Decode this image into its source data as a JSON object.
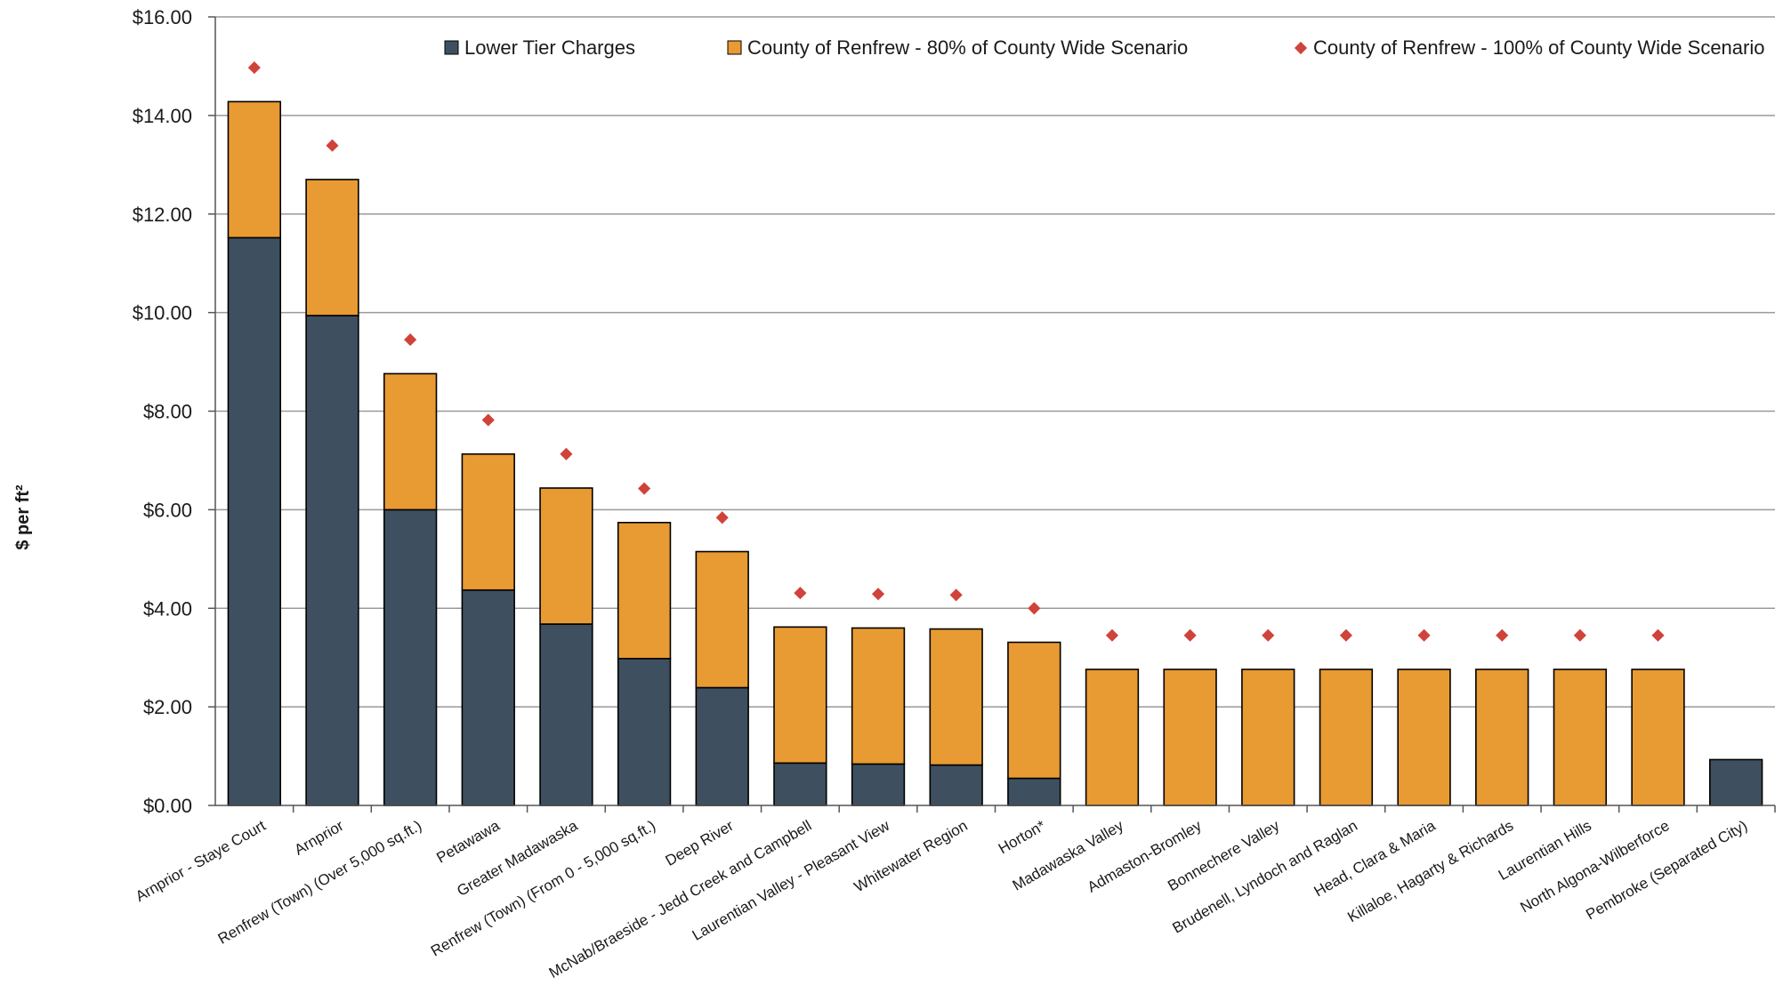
{
  "chart_data": {
    "type": "bar",
    "stacked": true,
    "title": "",
    "xlabel": "",
    "ylabel": "$ per ft²",
    "ylim": [
      0,
      16
    ],
    "yticks": [
      "$0.00",
      "$2.00",
      "$4.00",
      "$6.00",
      "$8.00",
      "$10.00",
      "$12.00",
      "$14.00",
      "$16.00"
    ],
    "grid": true,
    "legend_position": "top",
    "categories": [
      "Arnprior - Staye Court",
      "Arnprior",
      "Renfrew (Town) (Over 5,000 sq.ft.)",
      "Petawawa",
      "Greater Madawaska",
      "Renfrew (Town) (From 0 - 5,000 sq.ft.)",
      "Deep River",
      "McNab/Braeside - Jedd Creek and Campbell",
      "Laurentian Valley - Pleasant View",
      "Whitewater Region",
      "Horton*",
      "Madawaska Valley",
      "Admaston-Bromley",
      "Bonnechere Valley",
      "Brudenell, Lyndoch and Raglan",
      "Head, Clara & Maria",
      "Killaloe, Hagarty & Richards",
      "Laurentian Hills",
      "North Algona-Wilberforce",
      "Pembroke (Separated City)"
    ],
    "series": [
      {
        "name": "Lower Tier Charges",
        "kind": "bar",
        "color": "#3e5060",
        "values": [
          11.52,
          9.94,
          6.0,
          4.37,
          3.68,
          2.98,
          2.39,
          0.86,
          0.84,
          0.82,
          0.55,
          0,
          0,
          0,
          0,
          0,
          0,
          0,
          0,
          0.93
        ]
      },
      {
        "name": "County of Renfrew - 80% of County Wide Scenario",
        "kind": "bar",
        "color": "#e89a33",
        "values": [
          2.76,
          2.76,
          2.76,
          2.76,
          2.76,
          2.76,
          2.76,
          2.76,
          2.76,
          2.76,
          2.76,
          2.76,
          2.76,
          2.76,
          2.76,
          2.76,
          2.76,
          2.76,
          2.76,
          0
        ]
      },
      {
        "name": "County of Renfrew - 100% of County Wide Scenario",
        "kind": "marker",
        "color": "#d0433a",
        "values": [
          14.97,
          13.39,
          9.45,
          7.82,
          7.13,
          6.43,
          5.84,
          4.31,
          4.29,
          4.27,
          4.0,
          3.45,
          3.45,
          3.45,
          3.45,
          3.45,
          3.45,
          3.45,
          3.45,
          null
        ]
      }
    ]
  }
}
